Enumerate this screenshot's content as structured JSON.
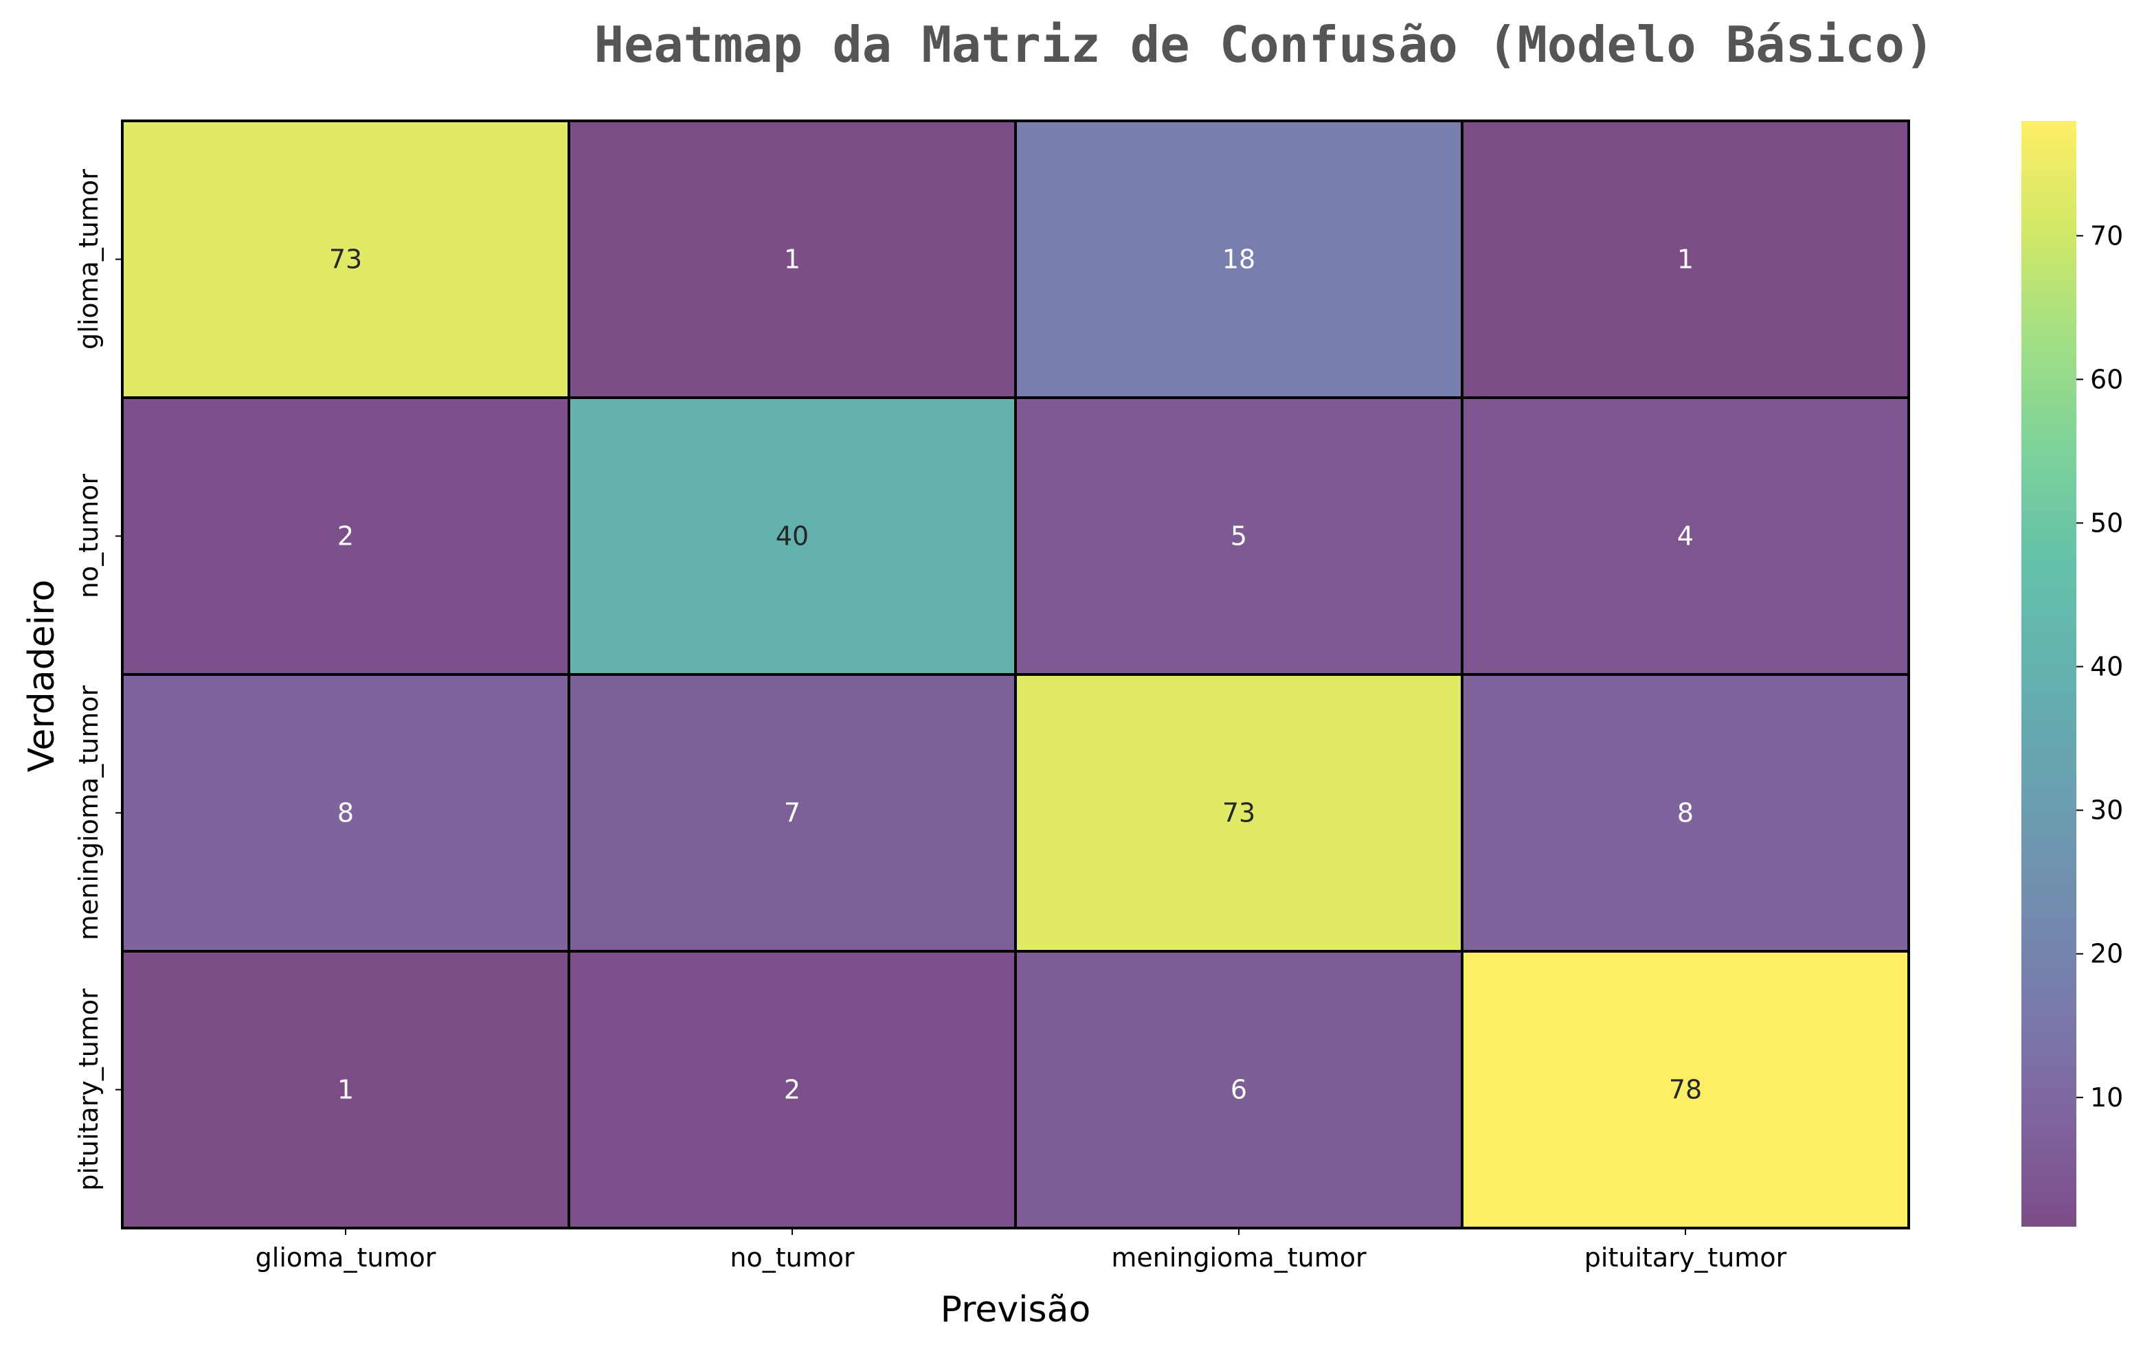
{
  "chart_data": {
    "type": "heatmap",
    "title": "Heatmap da Matriz de Confusão (Modelo Básico)",
    "xlabel": "Previsão",
    "ylabel": "Verdadeiro",
    "x_categories": [
      "glioma_tumor",
      "no_tumor",
      "meningioma_tumor",
      "pituitary_tumor"
    ],
    "y_categories": [
      "glioma_tumor",
      "no_tumor",
      "meningioma_tumor",
      "pituitary_tumor"
    ],
    "matrix": [
      [
        73,
        1,
        18,
        1
      ],
      [
        2,
        40,
        5,
        4
      ],
      [
        8,
        7,
        73,
        8
      ],
      [
        1,
        2,
        6,
        78
      ]
    ],
    "colormap": "viridis",
    "vmin": 1,
    "vmax": 78,
    "colorbar_ticks": [
      "10",
      "20",
      "30",
      "40",
      "50",
      "60",
      "70"
    ],
    "colorbar_tick_values": [
      10,
      20,
      30,
      40,
      50,
      60,
      70
    ],
    "grid": false,
    "legend": "colorbar-right",
    "cell_edge_color": "#000000"
  }
}
